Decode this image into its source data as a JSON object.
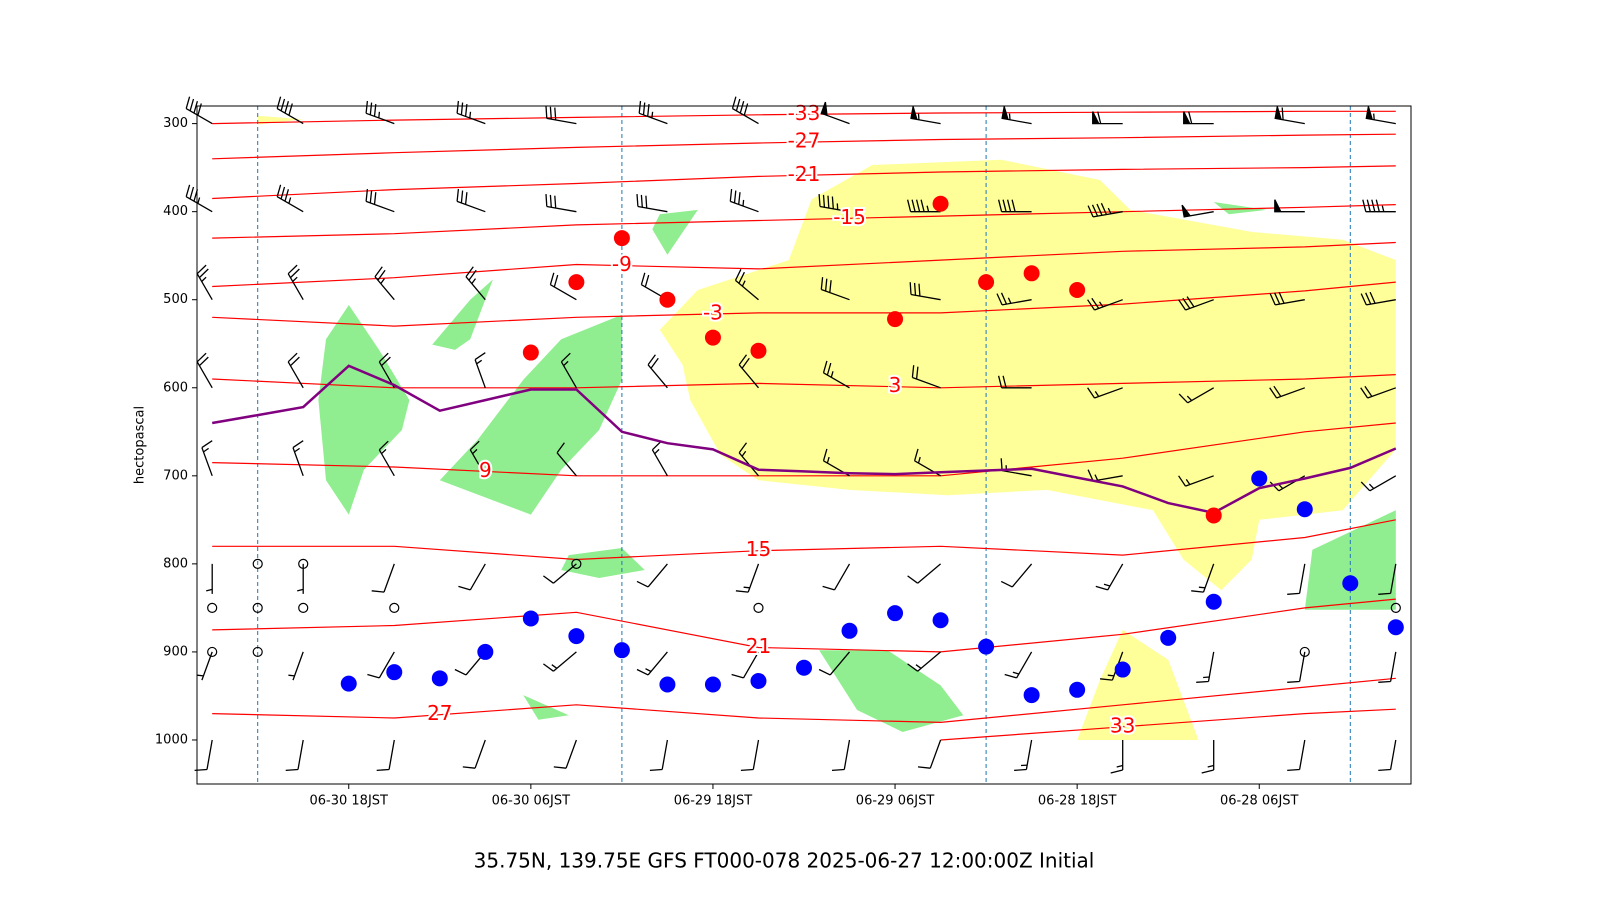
{
  "chart_data": {
    "type": "contour",
    "title": "35.75N, 139.75E GFS FT000-078 2025-06-27 12:00:00Z Initial",
    "ylabel": "hectopascal",
    "xlim": [
      79,
      -1
    ],
    "ylim": [
      1050,
      280
    ],
    "xticks": [
      {
        "value": 69,
        "label": "06-30 18JST"
      },
      {
        "value": 57,
        "label": "06-30 06JST"
      },
      {
        "value": 45,
        "label": "06-29 18JST"
      },
      {
        "value": 33,
        "label": "06-29 06JST"
      },
      {
        "value": 21,
        "label": "06-28 18JST"
      },
      {
        "value": 9,
        "label": "06-28 06JST"
      }
    ],
    "yticks": [
      300,
      400,
      500,
      600,
      700,
      800,
      900,
      1000
    ],
    "vlines": [
      75,
      51,
      27,
      3
    ],
    "vline_color": "#1f77b4",
    "regions": [
      {
        "color": "#90ee90",
        "x": [
          69,
          67,
          65,
          65.5,
          68,
          69,
          70.5,
          71,
          70.5
        ],
        "values": [
          506,
          557,
          614,
          648,
          693,
          744,
          705,
          614,
          545
        ]
      },
      {
        "color": "#90ee90",
        "x": [
          60.5,
          57.5,
          55,
          51,
          51,
          52.5,
          55,
          57,
          63
        ],
        "values": [
          659,
          591,
          545,
          517,
          591,
          648,
          693,
          744,
          705
        ]
      },
      {
        "color": "#90ee90",
        "x": [
          63.5,
          61,
          59.5,
          61,
          62
        ],
        "values": [
          551,
          500,
          477,
          545,
          557
        ]
      },
      {
        "color": "#90ee90",
        "x": [
          48.5,
          46,
          48,
          49
        ],
        "values": [
          403,
          398,
          449,
          420
        ]
      },
      {
        "color": "#90ee90",
        "x": [
          54.5,
          51,
          49.5,
          52.5,
          55
        ],
        "values": [
          790,
          782,
          807,
          816,
          807
        ]
      },
      {
        "color": "#90ee90",
        "x": [
          38,
          33.5,
          30,
          28.5,
          32.5,
          35.5
        ],
        "values": [
          898,
          898,
          938,
          972,
          991,
          966
        ]
      },
      {
        "color": "#90ee90",
        "x": [
          57.5,
          54.5,
          56.5
        ],
        "values": [
          949,
          972,
          977
        ]
      },
      {
        "color": "#90ee90",
        "x": [
          5.5,
          0,
          0,
          6
        ],
        "values": [
          784,
          739,
          852,
          852
        ]
      },
      {
        "color": "#90ee90",
        "x": [
          12,
          8.5,
          11
        ],
        "values": [
          389,
          398,
          403
        ]
      },
      {
        "color": "#ffff99",
        "x": [
          48.5,
          46,
          40,
          38.5,
          34.5,
          26,
          19.5,
          17.5,
          9.5,
          3.5,
          0,
          0,
          3.5,
          9,
          9.5,
          11.5,
          14,
          16,
          23,
          29.5,
          36,
          42,
          44.5,
          46.5,
          47
        ],
        "values": [
          534,
          489,
          455,
          386,
          347,
          341,
          364,
          398,
          423,
          432,
          455,
          670,
          739,
          750,
          795,
          830,
          795,
          739,
          716,
          722,
          716,
          705,
          676,
          614,
          574
        ]
      },
      {
        "color": "#ffff99",
        "x": [
          18,
          15,
          13,
          21,
          19.5
        ],
        "values": [
          875,
          909,
          1000,
          1000,
          932
        ]
      },
      {
        "color": "#ffff99",
        "x": [
          75,
          72,
          75
        ],
        "values": [
          291,
          295,
          301
        ]
      }
    ],
    "isotherms": {
      "color": "red",
      "x": [
        78,
        66,
        54,
        42,
        30,
        18,
        6,
        0
      ],
      "levels": [
        -33,
        -27,
        -21,
        -15,
        -9,
        -3,
        3,
        9,
        15,
        21,
        27,
        33
      ],
      "label_x": [
        39,
        39,
        39,
        36,
        51,
        45,
        33,
        60,
        42,
        42,
        63,
        18
      ],
      "values": [
        [
          300,
          296,
          293,
          290,
          288,
          287,
          286,
          286
        ],
        [
          340,
          333,
          327,
          322,
          318,
          316,
          313,
          312
        ],
        [
          385,
          375,
          368,
          360,
          355,
          352,
          350,
          348
        ],
        [
          430,
          425,
          415,
          410,
          405,
          400,
          395,
          392
        ],
        [
          485,
          475,
          460,
          465,
          455,
          445,
          440,
          435
        ],
        [
          520,
          530,
          520,
          515,
          515,
          505,
          490,
          480
        ],
        [
          590,
          600,
          600,
          595,
          600,
          595,
          590,
          585
        ],
        [
          685,
          690,
          700,
          700,
          700,
          680,
          650,
          640
        ],
        [
          780,
          780,
          795,
          785,
          780,
          790,
          770,
          750
        ],
        [
          875,
          870,
          855,
          895,
          900,
          880,
          850,
          840
        ],
        [
          970,
          975,
          960,
          975,
          980,
          960,
          940,
          930
        ],
        [
          null,
          null,
          null,
          null,
          1000,
          985,
          970,
          965
        ]
      ]
    },
    "wind": {
      "x": [
        78,
        72,
        66,
        60,
        54,
        48,
        42,
        36,
        30,
        24,
        18,
        12,
        6,
        0
      ],
      "levels": [
        300,
        400,
        500,
        600,
        700,
        800,
        900,
        1000
      ],
      "speed": [
        [
          40,
          40,
          35,
          35,
          30,
          35,
          40,
          50,
          55,
          55,
          60,
          60,
          60,
          55
        ],
        [
          35,
          35,
          30,
          30,
          30,
          30,
          35,
          45,
          45,
          40,
          45,
          50,
          50,
          45
        ],
        [
          25,
          25,
          25,
          25,
          20,
          20,
          25,
          30,
          30,
          25,
          25,
          30,
          30,
          30
        ],
        [
          20,
          20,
          20,
          15,
          15,
          20,
          20,
          25,
          20,
          20,
          15,
          15,
          20,
          20
        ],
        [
          15,
          15,
          15,
          15,
          10,
          15,
          15,
          15,
          15,
          15,
          15,
          15,
          15,
          15
        ],
        [
          5,
          5,
          10,
          10,
          10,
          10,
          15,
          10,
          10,
          10,
          15,
          15,
          10,
          10
        ],
        [
          5,
          5,
          10,
          10,
          15,
          15,
          10,
          10,
          15,
          15,
          15,
          15,
          10,
          10
        ],
        [
          10,
          10,
          10,
          10,
          10,
          10,
          10,
          10,
          10,
          15,
          15,
          15,
          10,
          10
        ]
      ],
      "direction": [
        [
          300,
          300,
          290,
          290,
          280,
          290,
          300,
          290,
          280,
          280,
          270,
          270,
          280,
          280
        ],
        [
          300,
          300,
          290,
          290,
          280,
          280,
          290,
          280,
          270,
          270,
          260,
          260,
          270,
          270
        ],
        [
          330,
          330,
          320,
          320,
          300,
          300,
          310,
          290,
          280,
          260,
          250,
          250,
          260,
          260
        ],
        [
          330,
          330,
          330,
          340,
          330,
          320,
          320,
          300,
          290,
          270,
          250,
          240,
          250,
          250
        ],
        [
          340,
          340,
          330,
          330,
          320,
          330,
          320,
          300,
          300,
          280,
          260,
          250,
          240,
          240
        ],
        [
          180,
          180,
          200,
          210,
          230,
          220,
          200,
          210,
          230,
          220,
          210,
          200,
          190,
          190
        ],
        [
          200,
          200,
          210,
          220,
          230,
          220,
          210,
          220,
          230,
          210,
          200,
          190,
          190,
          190
        ],
        [
          190,
          190,
          190,
          200,
          200,
          190,
          190,
          190,
          200,
          190,
          180,
          180,
          190,
          190
        ]
      ]
    },
    "line": {
      "color": "#800080",
      "x": [
        78,
        75,
        72,
        69,
        66,
        63,
        60,
        57,
        54,
        51,
        48,
        45,
        42,
        39,
        36,
        33,
        30,
        27,
        24,
        21,
        18,
        15,
        12,
        9,
        6,
        3,
        0
      ],
      "values": [
        640,
        631,
        622,
        575,
        597,
        626,
        614,
        602,
        602,
        650,
        663,
        670,
        693,
        695,
        697,
        698,
        696,
        694,
        692,
        702,
        712,
        731,
        742,
        714,
        703,
        691,
        669
      ]
    },
    "points": [
      {
        "color": "red",
        "x": [
          51,
          54,
          57,
          48,
          45,
          42,
          33,
          30,
          27,
          24,
          21,
          12
        ],
        "values": [
          430,
          480,
          560,
          500,
          543,
          558,
          522,
          391,
          480,
          470,
          489,
          745
        ]
      },
      {
        "color": "blue",
        "x": [
          69,
          66,
          63,
          60,
          57,
          54,
          51,
          48,
          45,
          42,
          39,
          36,
          33,
          30,
          27,
          24,
          21,
          18,
          15,
          12,
          9,
          6,
          3,
          0
        ],
        "values": [
          936,
          923,
          930,
          900,
          862,
          882,
          898,
          937,
          937,
          933,
          918,
          876,
          856,
          864,
          894,
          949,
          943,
          920,
          884,
          843,
          703,
          738,
          822,
          872
        ]
      }
    ],
    "calm": {
      "x": [
        78,
        78,
        75,
        75,
        75,
        72,
        72,
        66,
        54,
        42,
        6,
        0
      ],
      "values": [
        850,
        900,
        800,
        850,
        900,
        800,
        850,
        850,
        800,
        850,
        900,
        850
      ]
    }
  }
}
